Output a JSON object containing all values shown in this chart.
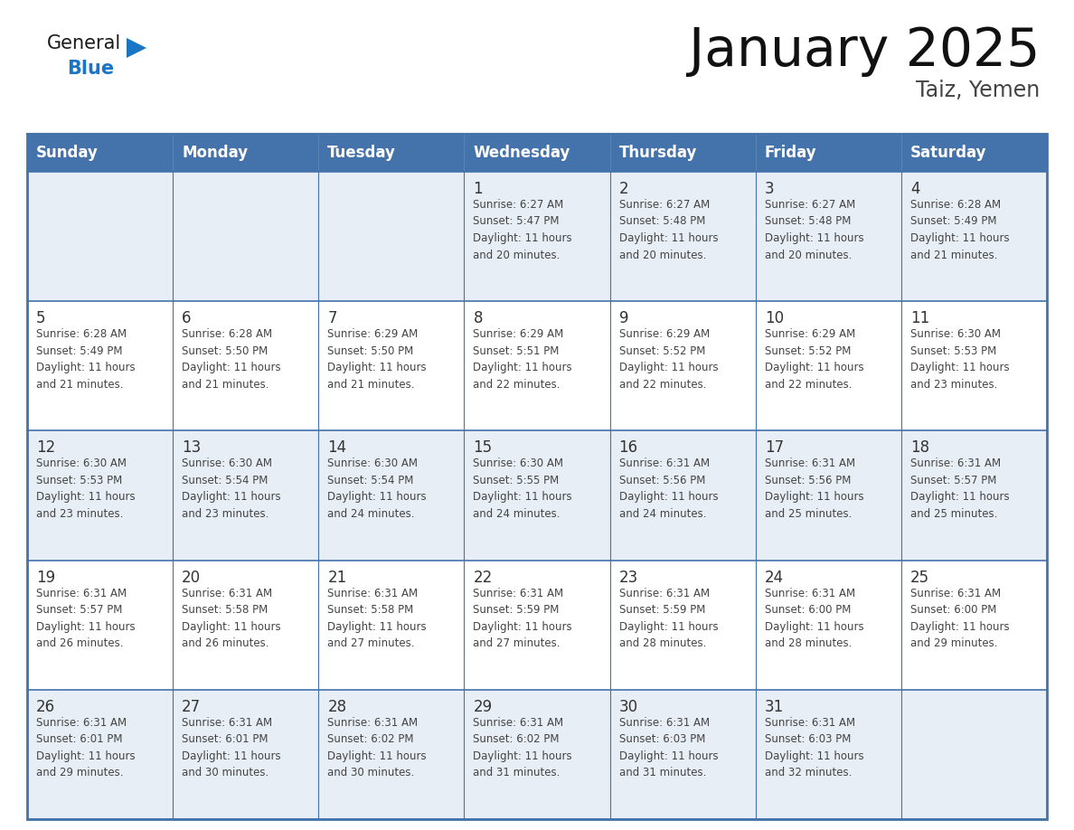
{
  "title": "January 2025",
  "subtitle": "Taiz, Yemen",
  "days_of_week": [
    "Sunday",
    "Monday",
    "Tuesday",
    "Wednesday",
    "Thursday",
    "Friday",
    "Saturday"
  ],
  "header_bg": "#4472AA",
  "header_text": "#FFFFFF",
  "cell_bg_white": "#FFFFFF",
  "cell_bg_light": "#E8EEF5",
  "grid_line_color": "#4472AA",
  "day_num_color": "#333333",
  "cell_text_color": "#444444",
  "title_color": "#111111",
  "subtitle_color": "#444444",
  "logo_general_color": "#1a1a1a",
  "logo_blue_color": "#1a75c4",
  "weeks": [
    [
      {
        "day": 0,
        "info": ""
      },
      {
        "day": 0,
        "info": ""
      },
      {
        "day": 0,
        "info": ""
      },
      {
        "day": 1,
        "info": "Sunrise: 6:27 AM\nSunset: 5:47 PM\nDaylight: 11 hours\nand 20 minutes."
      },
      {
        "day": 2,
        "info": "Sunrise: 6:27 AM\nSunset: 5:48 PM\nDaylight: 11 hours\nand 20 minutes."
      },
      {
        "day": 3,
        "info": "Sunrise: 6:27 AM\nSunset: 5:48 PM\nDaylight: 11 hours\nand 20 minutes."
      },
      {
        "day": 4,
        "info": "Sunrise: 6:28 AM\nSunset: 5:49 PM\nDaylight: 11 hours\nand 21 minutes."
      }
    ],
    [
      {
        "day": 5,
        "info": "Sunrise: 6:28 AM\nSunset: 5:49 PM\nDaylight: 11 hours\nand 21 minutes."
      },
      {
        "day": 6,
        "info": "Sunrise: 6:28 AM\nSunset: 5:50 PM\nDaylight: 11 hours\nand 21 minutes."
      },
      {
        "day": 7,
        "info": "Sunrise: 6:29 AM\nSunset: 5:50 PM\nDaylight: 11 hours\nand 21 minutes."
      },
      {
        "day": 8,
        "info": "Sunrise: 6:29 AM\nSunset: 5:51 PM\nDaylight: 11 hours\nand 22 minutes."
      },
      {
        "day": 9,
        "info": "Sunrise: 6:29 AM\nSunset: 5:52 PM\nDaylight: 11 hours\nand 22 minutes."
      },
      {
        "day": 10,
        "info": "Sunrise: 6:29 AM\nSunset: 5:52 PM\nDaylight: 11 hours\nand 22 minutes."
      },
      {
        "day": 11,
        "info": "Sunrise: 6:30 AM\nSunset: 5:53 PM\nDaylight: 11 hours\nand 23 minutes."
      }
    ],
    [
      {
        "day": 12,
        "info": "Sunrise: 6:30 AM\nSunset: 5:53 PM\nDaylight: 11 hours\nand 23 minutes."
      },
      {
        "day": 13,
        "info": "Sunrise: 6:30 AM\nSunset: 5:54 PM\nDaylight: 11 hours\nand 23 minutes."
      },
      {
        "day": 14,
        "info": "Sunrise: 6:30 AM\nSunset: 5:54 PM\nDaylight: 11 hours\nand 24 minutes."
      },
      {
        "day": 15,
        "info": "Sunrise: 6:30 AM\nSunset: 5:55 PM\nDaylight: 11 hours\nand 24 minutes."
      },
      {
        "day": 16,
        "info": "Sunrise: 6:31 AM\nSunset: 5:56 PM\nDaylight: 11 hours\nand 24 minutes."
      },
      {
        "day": 17,
        "info": "Sunrise: 6:31 AM\nSunset: 5:56 PM\nDaylight: 11 hours\nand 25 minutes."
      },
      {
        "day": 18,
        "info": "Sunrise: 6:31 AM\nSunset: 5:57 PM\nDaylight: 11 hours\nand 25 minutes."
      }
    ],
    [
      {
        "day": 19,
        "info": "Sunrise: 6:31 AM\nSunset: 5:57 PM\nDaylight: 11 hours\nand 26 minutes."
      },
      {
        "day": 20,
        "info": "Sunrise: 6:31 AM\nSunset: 5:58 PM\nDaylight: 11 hours\nand 26 minutes."
      },
      {
        "day": 21,
        "info": "Sunrise: 6:31 AM\nSunset: 5:58 PM\nDaylight: 11 hours\nand 27 minutes."
      },
      {
        "day": 22,
        "info": "Sunrise: 6:31 AM\nSunset: 5:59 PM\nDaylight: 11 hours\nand 27 minutes."
      },
      {
        "day": 23,
        "info": "Sunrise: 6:31 AM\nSunset: 5:59 PM\nDaylight: 11 hours\nand 28 minutes."
      },
      {
        "day": 24,
        "info": "Sunrise: 6:31 AM\nSunset: 6:00 PM\nDaylight: 11 hours\nand 28 minutes."
      },
      {
        "day": 25,
        "info": "Sunrise: 6:31 AM\nSunset: 6:00 PM\nDaylight: 11 hours\nand 29 minutes."
      }
    ],
    [
      {
        "day": 26,
        "info": "Sunrise: 6:31 AM\nSunset: 6:01 PM\nDaylight: 11 hours\nand 29 minutes."
      },
      {
        "day": 27,
        "info": "Sunrise: 6:31 AM\nSunset: 6:01 PM\nDaylight: 11 hours\nand 30 minutes."
      },
      {
        "day": 28,
        "info": "Sunrise: 6:31 AM\nSunset: 6:02 PM\nDaylight: 11 hours\nand 30 minutes."
      },
      {
        "day": 29,
        "info": "Sunrise: 6:31 AM\nSunset: 6:02 PM\nDaylight: 11 hours\nand 31 minutes."
      },
      {
        "day": 30,
        "info": "Sunrise: 6:31 AM\nSunset: 6:03 PM\nDaylight: 11 hours\nand 31 minutes."
      },
      {
        "day": 31,
        "info": "Sunrise: 6:31 AM\nSunset: 6:03 PM\nDaylight: 11 hours\nand 32 minutes."
      },
      {
        "day": 0,
        "info": ""
      }
    ]
  ],
  "fig_width": 11.88,
  "fig_height": 9.18,
  "dpi": 100
}
